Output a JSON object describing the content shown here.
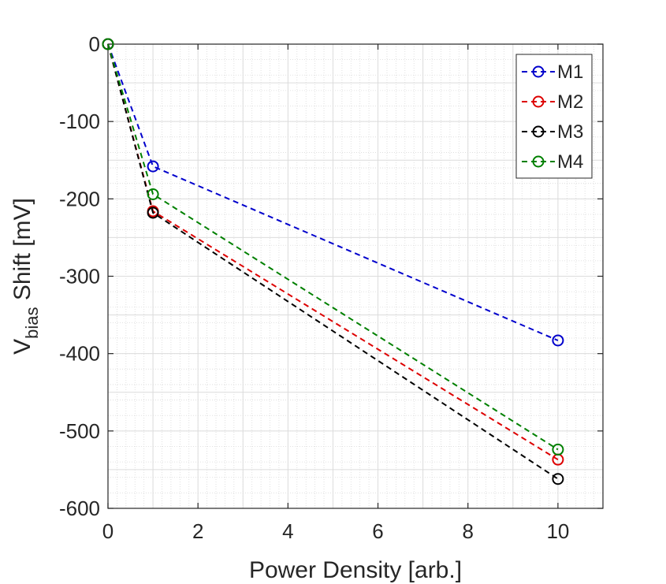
{
  "chart_data": {
    "type": "line",
    "xlabel": "Power Density [arb.]",
    "ylabel": {
      "main": "V",
      "sub": "bias",
      "rest": " Shift [mV]"
    },
    "xlim": [
      0,
      11
    ],
    "ylim": [
      -600,
      0
    ],
    "xticks": [
      0,
      2,
      4,
      6,
      8,
      10
    ],
    "yticks": [
      0,
      -100,
      -200,
      -300,
      -400,
      -500,
      -600
    ],
    "xtick_labels": [
      "0",
      "2",
      "4",
      "6",
      "8",
      "10"
    ],
    "ytick_labels": [
      "0",
      "-100",
      "-200",
      "-300",
      "-400",
      "-500",
      "-600"
    ],
    "grid": "major and minor",
    "legend_position": "top-right",
    "x": [
      0,
      1,
      10
    ],
    "series": [
      {
        "name": "M1",
        "color": "#0000cc",
        "marker": "circle",
        "line": "dashed",
        "values": [
          0,
          -158,
          -383
        ]
      },
      {
        "name": "M2",
        "color": "#dd0000",
        "marker": "circle",
        "line": "dashed",
        "values": [
          0,
          -216,
          -537
        ]
      },
      {
        "name": "M3",
        "color": "#000000",
        "marker": "circle",
        "line": "dashed",
        "values": [
          0,
          -218,
          -562
        ]
      },
      {
        "name": "M4",
        "color": "#008000",
        "marker": "circle",
        "line": "dashed",
        "values": [
          0,
          -194,
          -524
        ]
      }
    ]
  }
}
